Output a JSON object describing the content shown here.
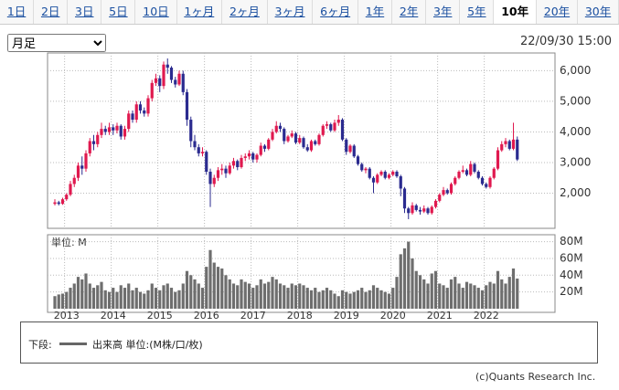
{
  "tabs": [
    {
      "label": "1日",
      "selected": false
    },
    {
      "label": "2日",
      "selected": false
    },
    {
      "label": "3日",
      "selected": false
    },
    {
      "label": "5日",
      "selected": false
    },
    {
      "label": "10日",
      "selected": false
    },
    {
      "label": "1ヶ月",
      "selected": false
    },
    {
      "label": "2ヶ月",
      "selected": false
    },
    {
      "label": "3ヶ月",
      "selected": false
    },
    {
      "label": "6ヶ月",
      "selected": false
    },
    {
      "label": "1年",
      "selected": false
    },
    {
      "label": "2年",
      "selected": false
    },
    {
      "label": "3年",
      "selected": false
    },
    {
      "label": "5年",
      "selected": false
    },
    {
      "label": "10年",
      "selected": true
    },
    {
      "label": "20年",
      "selected": false
    },
    {
      "label": "30年",
      "selected": false
    }
  ],
  "period_select": "月足",
  "timestamp": "22/09/30 15:00",
  "legend": {
    "prefix": "下段:",
    "text": "出来高 単位:(M株/口/枚)"
  },
  "copyright": "(c)Quants Research Inc.",
  "chart_data": {
    "type": "candlestick",
    "up_color": "#e0194f",
    "down_color": "#2b2b8f",
    "volume_color": "#6e6e6e",
    "grid": true,
    "categories": [
      null,
      null,
      null,
      "2013",
      null,
      null,
      null,
      null,
      null,
      null,
      null,
      null,
      null,
      null,
      null,
      "2014",
      null,
      null,
      null,
      null,
      null,
      null,
      null,
      null,
      null,
      null,
      null,
      "2015",
      null,
      null,
      null,
      null,
      null,
      null,
      null,
      null,
      null,
      null,
      null,
      "2016",
      null,
      null,
      null,
      null,
      null,
      null,
      null,
      null,
      null,
      null,
      null,
      "2017",
      null,
      null,
      null,
      null,
      null,
      null,
      null,
      null,
      null,
      null,
      null,
      "2018",
      null,
      null,
      null,
      null,
      null,
      null,
      null,
      null,
      null,
      null,
      null,
      "2019",
      null,
      null,
      null,
      null,
      null,
      null,
      null,
      null,
      null,
      null,
      null,
      "2020",
      null,
      null,
      null,
      null,
      null,
      null,
      null,
      null,
      null,
      null,
      null,
      "2021",
      null,
      null,
      null,
      null,
      null,
      null,
      null,
      null,
      null,
      null,
      null,
      "2022",
      null,
      null,
      null,
      null,
      null,
      null,
      null,
      null
    ],
    "ohlc": [
      [
        1650,
        1800,
        1600,
        1700
      ],
      [
        1700,
        1750,
        1600,
        1650
      ],
      [
        1650,
        1850,
        1620,
        1800
      ],
      [
        1800,
        2000,
        1750,
        1950
      ],
      [
        1950,
        2400,
        1900,
        2300
      ],
      [
        2300,
        2600,
        2200,
        2500
      ],
      [
        2500,
        3000,
        2400,
        2900
      ],
      [
        2900,
        3200,
        2600,
        2800
      ],
      [
        2800,
        3400,
        2700,
        3300
      ],
      [
        3300,
        3800,
        3200,
        3700
      ],
      [
        3700,
        3900,
        3400,
        3600
      ],
      [
        3600,
        4000,
        3500,
        3900
      ],
      [
        3900,
        4300,
        3800,
        4100
      ],
      [
        4100,
        4200,
        3900,
        4000
      ],
      [
        4000,
        4300,
        3900,
        4150
      ],
      [
        4150,
        4250,
        3900,
        4050
      ],
      [
        4050,
        4300,
        3950,
        4200
      ],
      [
        4200,
        4250,
        3750,
        3850
      ],
      [
        3850,
        4200,
        3750,
        4100
      ],
      [
        4100,
        4700,
        4000,
        4600
      ],
      [
        4600,
        4700,
        4300,
        4400
      ],
      [
        4400,
        5000,
        4300,
        4900
      ],
      [
        4900,
        5000,
        4600,
        4700
      ],
      [
        4700,
        4800,
        4500,
        4600
      ],
      [
        4600,
        5200,
        4500,
        5100
      ],
      [
        5100,
        5700,
        5000,
        5600
      ],
      [
        5600,
        5900,
        5500,
        5750
      ],
      [
        5750,
        5850,
        5300,
        5500
      ],
      [
        5500,
        6300,
        5400,
        6200
      ],
      [
        6200,
        6400,
        5900,
        6100
      ],
      [
        6100,
        6150,
        5600,
        5700
      ],
      [
        5700,
        5800,
        5450,
        5550
      ],
      [
        5550,
        6000,
        5500,
        5900
      ],
      [
        5900,
        6000,
        5200,
        5300
      ],
      [
        5300,
        5400,
        4200,
        4400
      ],
      [
        4400,
        4500,
        3500,
        3700
      ],
      [
        3700,
        3900,
        3400,
        3500
      ],
      [
        3500,
        3600,
        3200,
        3300
      ],
      [
        3300,
        3500,
        3200,
        3350
      ],
      [
        3350,
        3400,
        2600,
        2700
      ],
      [
        2700,
        2800,
        1550,
        2300
      ],
      [
        2300,
        2600,
        2200,
        2500
      ],
      [
        2500,
        2850,
        2400,
        2750
      ],
      [
        2750,
        2950,
        2600,
        2800
      ],
      [
        2800,
        2900,
        2500,
        2650
      ],
      [
        2650,
        3000,
        2600,
        2900
      ],
      [
        2900,
        3150,
        2800,
        3050
      ],
      [
        3050,
        3100,
        2750,
        2850
      ],
      [
        2850,
        3250,
        2800,
        3150
      ],
      [
        3150,
        3300,
        3050,
        3200
      ],
      [
        3200,
        3400,
        3100,
        3300
      ],
      [
        3300,
        3350,
        3000,
        3100
      ],
      [
        3100,
        3300,
        3000,
        3250
      ],
      [
        3250,
        3650,
        3200,
        3550
      ],
      [
        3550,
        3600,
        3350,
        3450
      ],
      [
        3450,
        3800,
        3400,
        3750
      ],
      [
        3750,
        4100,
        3700,
        4000
      ],
      [
        4000,
        4350,
        3950,
        4200
      ],
      [
        4200,
        4300,
        4000,
        4100
      ],
      [
        4100,
        4150,
        3600,
        3700
      ],
      [
        3700,
        3900,
        3650,
        3850
      ],
      [
        3850,
        4050,
        3800,
        3950
      ],
      [
        3950,
        4000,
        3600,
        3650
      ],
      [
        3650,
        3900,
        3600,
        3800
      ],
      [
        3800,
        3850,
        3450,
        3500
      ],
      [
        3500,
        3600,
        3350,
        3400
      ],
      [
        3400,
        3750,
        3350,
        3700
      ],
      [
        3700,
        3750,
        3550,
        3600
      ],
      [
        3600,
        3950,
        3550,
        3900
      ],
      [
        3900,
        4250,
        3850,
        4200
      ],
      [
        4200,
        4350,
        4100,
        4250
      ],
      [
        4250,
        4300,
        4000,
        4050
      ],
      [
        4050,
        4400,
        4000,
        4300
      ],
      [
        4300,
        4550,
        4200,
        4400
      ],
      [
        4400,
        4450,
        3700,
        3750
      ],
      [
        3750,
        3800,
        3250,
        3350
      ],
      [
        3350,
        3600,
        3300,
        3550
      ],
      [
        3550,
        3600,
        3150,
        3200
      ],
      [
        3200,
        3250,
        2900,
        2950
      ],
      [
        2950,
        3000,
        2700,
        2750
      ],
      [
        2750,
        2850,
        2650,
        2800
      ],
      [
        2800,
        2850,
        2450,
        2500
      ],
      [
        2500,
        2550,
        2000,
        2350
      ],
      [
        2350,
        2650,
        2300,
        2600
      ],
      [
        2600,
        2750,
        2550,
        2700
      ],
      [
        2700,
        2750,
        2450,
        2500
      ],
      [
        2500,
        2650,
        2450,
        2600
      ],
      [
        2600,
        2750,
        2550,
        2700
      ],
      [
        2700,
        2750,
        2500,
        2550
      ],
      [
        2550,
        2600,
        1900,
        2150
      ],
      [
        2150,
        2200,
        1350,
        1500
      ],
      [
        1500,
        1550,
        1150,
        1350
      ],
      [
        1350,
        1700,
        1300,
        1600
      ],
      [
        1600,
        1650,
        1400,
        1450
      ],
      [
        1450,
        1550,
        1300,
        1400
      ],
      [
        1400,
        1600,
        1350,
        1500
      ],
      [
        1500,
        1550,
        1300,
        1350
      ],
      [
        1350,
        1600,
        1300,
        1550
      ],
      [
        1550,
        1800,
        1500,
        1750
      ],
      [
        1750,
        2000,
        1700,
        1950
      ],
      [
        1950,
        2200,
        1900,
        2100
      ],
      [
        2100,
        2150,
        1950,
        2000
      ],
      [
        2000,
        2350,
        1950,
        2300
      ],
      [
        2300,
        2550,
        2250,
        2500
      ],
      [
        2500,
        2750,
        2450,
        2700
      ],
      [
        2700,
        2900,
        2650,
        2750
      ],
      [
        2750,
        2800,
        2550,
        2600
      ],
      [
        2600,
        3050,
        2550,
        2950
      ],
      [
        2950,
        3000,
        2650,
        2700
      ],
      [
        2700,
        2750,
        2450,
        2500
      ],
      [
        2500,
        2550,
        2250,
        2300
      ],
      [
        2300,
        2350,
        2150,
        2200
      ],
      [
        2200,
        2550,
        2150,
        2500
      ],
      [
        2500,
        2850,
        2450,
        2800
      ],
      [
        2800,
        3500,
        2750,
        3400
      ],
      [
        3400,
        3700,
        3350,
        3600
      ],
      [
        3600,
        3800,
        3500,
        3700
      ],
      [
        3700,
        3750,
        3400,
        3450
      ],
      [
        3450,
        4300,
        3400,
        3750
      ],
      [
        3750,
        3850,
        3050,
        3100
      ]
    ],
    "ylim": [
      1000,
      6400
    ],
    "yticks": [
      {
        "value": 6000,
        "label": "6,000"
      },
      {
        "value": 5000,
        "label": "5,000"
      },
      {
        "value": 4000,
        "label": "4,000"
      },
      {
        "value": 3000,
        "label": "3,000"
      },
      {
        "value": 2000,
        "label": "2,000"
      }
    ],
    "volume_label": "単位: M",
    "volume": [
      15,
      17,
      18,
      20,
      25,
      30,
      38,
      35,
      42,
      30,
      25,
      28,
      32,
      22,
      20,
      25,
      20,
      28,
      25,
      30,
      22,
      25,
      20,
      18,
      22,
      30,
      25,
      22,
      28,
      30,
      25,
      20,
      22,
      30,
      45,
      40,
      35,
      30,
      25,
      50,
      70,
      55,
      50,
      48,
      40,
      35,
      30,
      28,
      35,
      32,
      30,
      25,
      28,
      35,
      30,
      32,
      38,
      35,
      30,
      28,
      25,
      30,
      28,
      30,
      28,
      25,
      22,
      25,
      20,
      22,
      25,
      22,
      18,
      15,
      22,
      20,
      18,
      20,
      22,
      25,
      20,
      22,
      28,
      25,
      22,
      20,
      18,
      25,
      38,
      65,
      72,
      80,
      60,
      45,
      40,
      35,
      30,
      42,
      45,
      30,
      28,
      25,
      35,
      38,
      30,
      25,
      32,
      30,
      28,
      25,
      22,
      28,
      32,
      30,
      45,
      35,
      30,
      38,
      48,
      36
    ],
    "y2lim": [
      0,
      85
    ],
    "y2ticks": [
      {
        "value": 80,
        "label": "80M"
      },
      {
        "value": 60,
        "label": "60M"
      },
      {
        "value": 40,
        "label": "40M"
      },
      {
        "value": 20,
        "label": "20M"
      }
    ]
  }
}
